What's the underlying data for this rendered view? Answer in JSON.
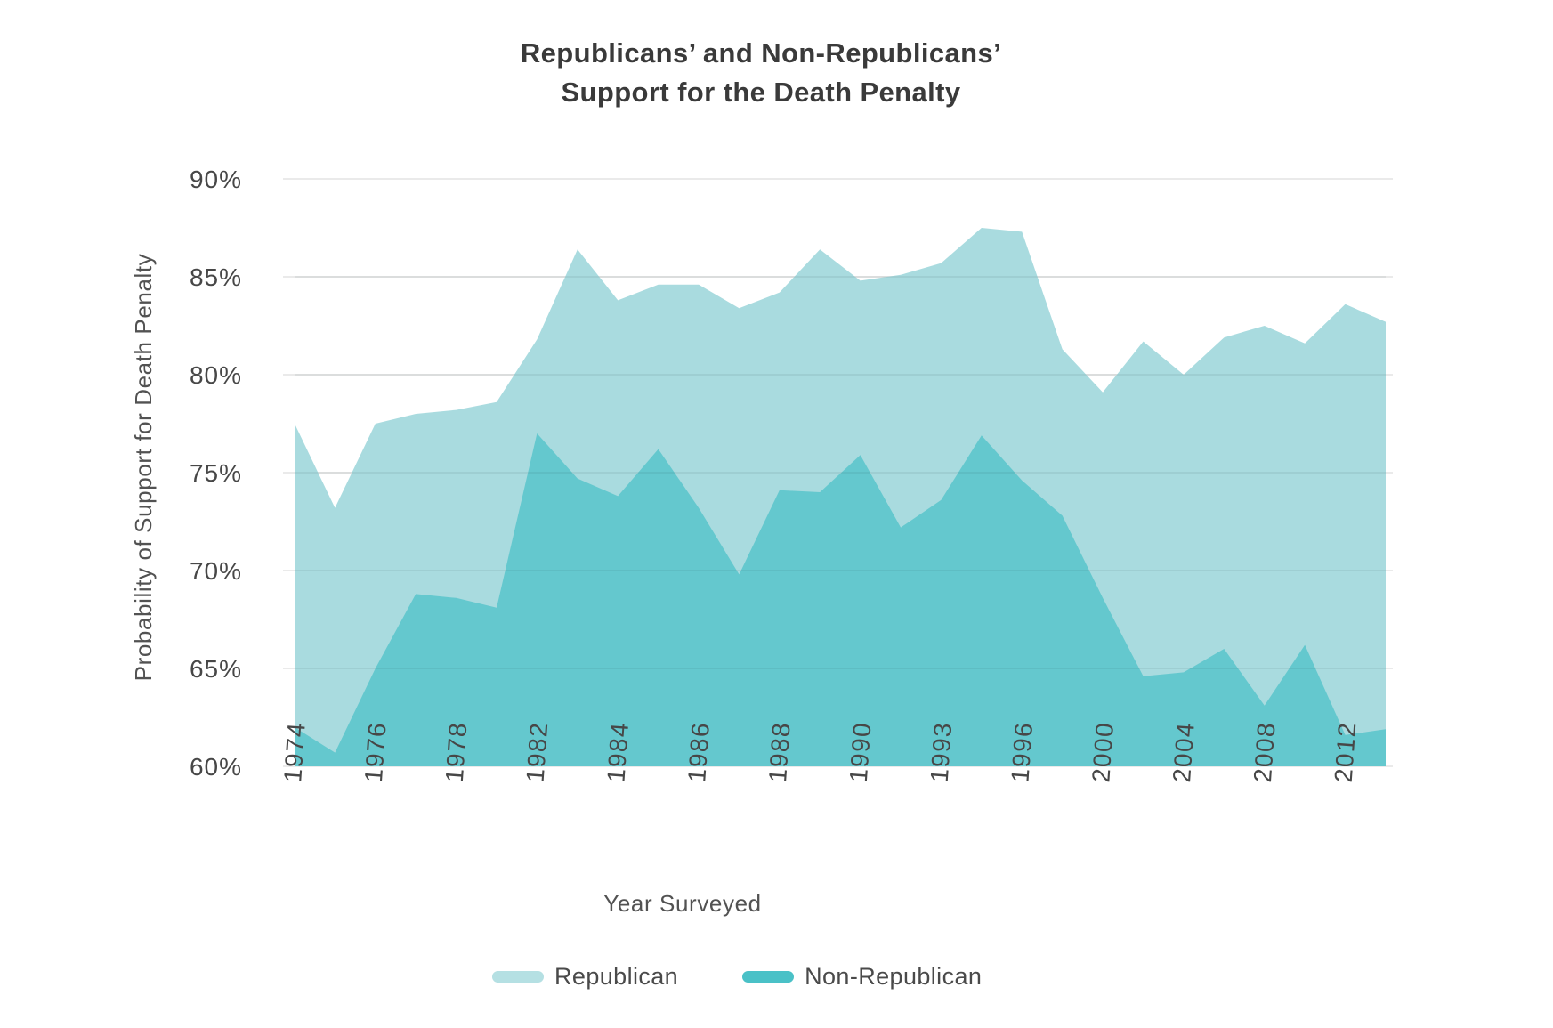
{
  "title": {
    "line1": "Republicans’ and Non-Republicans’",
    "line2": "Support for the Death Penalty"
  },
  "chart_data": {
    "type": "area",
    "title": "Republicans’ and Non-Republicans’ Support for the Death Penalty",
    "xlabel": "Year Surveyed",
    "ylabel": "Probability of Support for Death Penalty",
    "ylim": [
      60,
      90
    ],
    "grid": true,
    "legend_position": "bottom",
    "categories": [
      1974,
      1975,
      1976,
      1977,
      1978,
      1980,
      1982,
      1983,
      1984,
      1985,
      1986,
      1987,
      1988,
      1989,
      1990,
      1991,
      1993,
      1994,
      1996,
      1998,
      2000,
      2002,
      2004,
      2006,
      2008,
      2010,
      2012,
      2014
    ],
    "x_tick_indices": [
      0,
      2,
      4,
      6,
      8,
      10,
      12,
      14,
      16,
      18,
      20,
      22,
      24,
      26
    ],
    "x_tick_labels": [
      "1974",
      "1976",
      "1978",
      "1982",
      "1984",
      "1986",
      "1988",
      "1990",
      "1993",
      "1996",
      "2000",
      "2004",
      "2008",
      "2012"
    ],
    "y_ticks": [
      {
        "value": 60,
        "label": "60%"
      },
      {
        "value": 65,
        "label": "65%"
      },
      {
        "value": 70,
        "label": "70%"
      },
      {
        "value": 75,
        "label": "75%"
      },
      {
        "value": 80,
        "label": "80%"
      },
      {
        "value": 85,
        "label": "85%"
      },
      {
        "value": 90,
        "label": "90%"
      }
    ],
    "series": [
      {
        "name": "Republican",
        "fill": "#a9dbdf",
        "legend_color": "#b5e0e3",
        "opacity": 1,
        "values": [
          77.5,
          73.2,
          77.5,
          78.0,
          78.2,
          78.6,
          81.8,
          86.4,
          83.8,
          84.6,
          84.6,
          83.4,
          84.2,
          86.4,
          84.8,
          85.1,
          85.7,
          87.5,
          87.3,
          81.3,
          79.1,
          81.7,
          80.0,
          81.9,
          82.5,
          81.6,
          83.6,
          82.7
        ]
      },
      {
        "name": "Non-Republican",
        "fill": "#4ac1c7",
        "legend_color": "#4ac1c7",
        "opacity": 0.72,
        "values": [
          62.0,
          60.7,
          65.0,
          68.8,
          68.6,
          68.1,
          77.0,
          74.7,
          73.8,
          76.2,
          73.2,
          69.8,
          74.1,
          74.0,
          75.9,
          72.2,
          73.6,
          76.9,
          74.6,
          72.8,
          68.6,
          64.6,
          64.8,
          66.0,
          63.1,
          66.2,
          61.6,
          61.9
        ]
      }
    ],
    "colors": {
      "gridline": "#e4e4e4",
      "tick_text": "#474747",
      "axis_title_text": "#525252",
      "title_text": "#3a3a3a"
    }
  }
}
